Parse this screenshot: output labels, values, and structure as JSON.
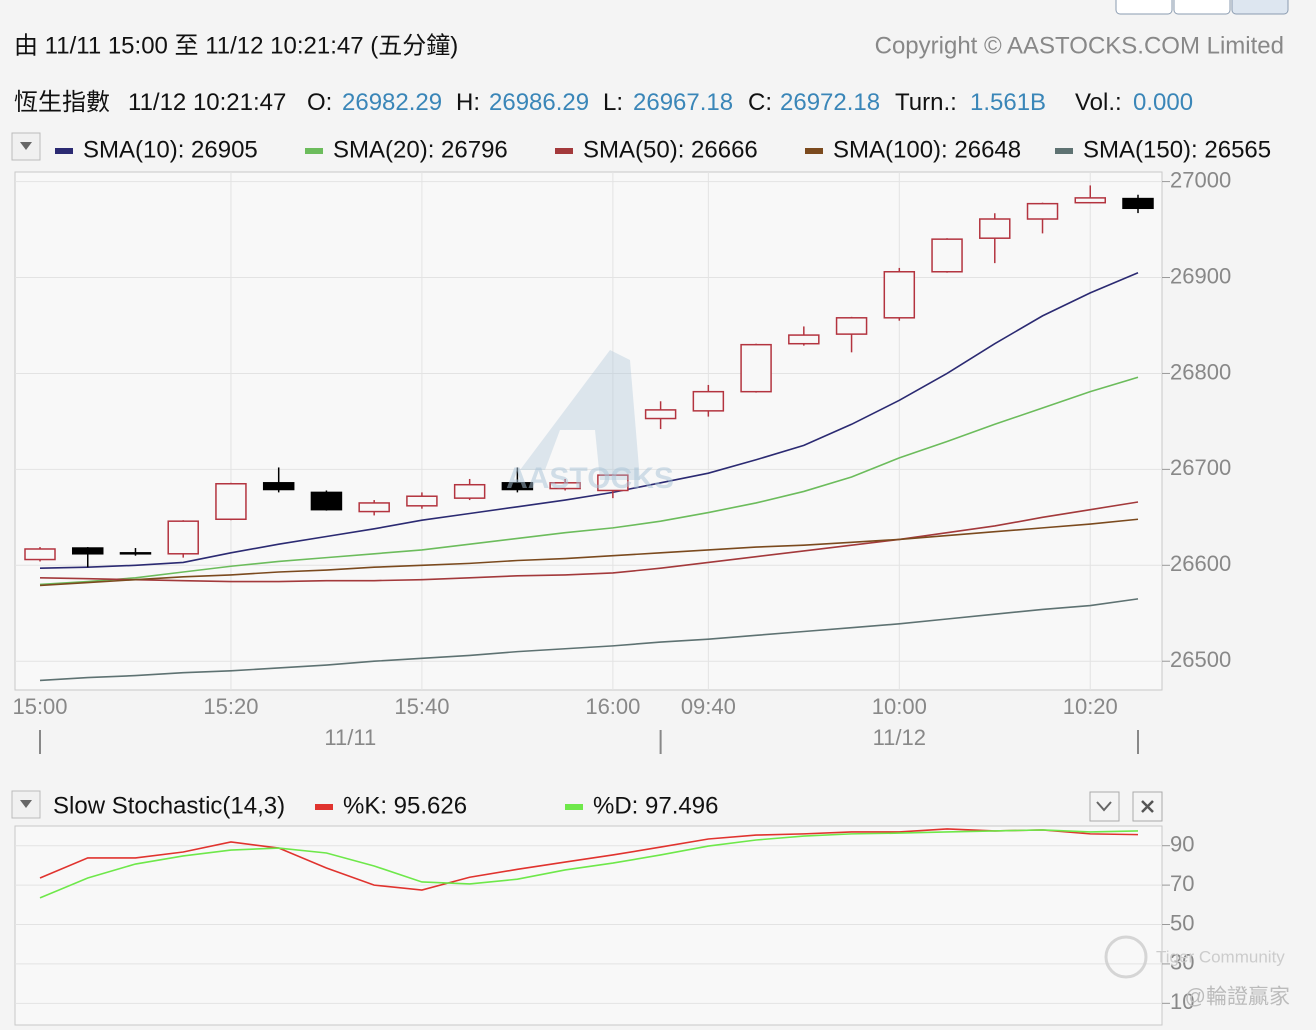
{
  "header": {
    "range": "由  11/11 15:00 至  11/12 10:21:47 (五分鐘)",
    "copyright": "Copyright © AASTOCKS.COM Limited"
  },
  "info": {
    "name": "恆生指數",
    "time": "11/12 10:21:47",
    "o": "O:",
    "h": "H:",
    "l": "L:",
    "c": "C:",
    "turn_label": "Turn.:",
    "turn": "1.561B",
    "vol_label": "Vol.:",
    "vol": "0.000"
  },
  "watermarks": [
    "AASTOCKS",
    "Tiger Community",
    "@輪證贏家"
  ],
  "chart_data": [
    {
      "type": "candlestick",
      "categories": [
        "15:00",
        null,
        null,
        null,
        "15:20",
        null,
        null,
        null,
        "15:40",
        null,
        null,
        null,
        "16:00",
        null,
        "09:40",
        null,
        null,
        null,
        "10:00",
        null,
        null,
        null,
        "10:20",
        null
      ],
      "dates": [
        "11/11",
        "11/12"
      ],
      "open": [
        26606,
        26618,
        26613,
        26612,
        26648,
        26686,
        26676,
        26656,
        26662,
        26670,
        26686,
        26680,
        26678,
        26753,
        26761,
        26781,
        26831,
        26841,
        26858,
        26906,
        26941,
        26961,
        26978,
        26982.29
      ],
      "high": [
        26619,
        26619,
        26618,
        26647,
        26686,
        26702,
        26678,
        26668,
        26676,
        26690,
        26702,
        26690,
        26695,
        26771,
        26788,
        26831,
        26849,
        26859,
        26910,
        26941,
        26967,
        26978,
        26996,
        26986.29
      ],
      "low": [
        26604,
        26598,
        26610,
        26608,
        26647,
        26676,
        26657,
        26652,
        26659,
        26668,
        26676,
        26678,
        26670,
        26742,
        26755,
        26780,
        26829,
        26822,
        26855,
        26905,
        26915,
        26946,
        26978,
        26967.18
      ],
      "close": [
        26617,
        26612,
        26612,
        26646,
        26685,
        26679,
        26658,
        26665,
        26672,
        26684,
        26679,
        26686,
        26694,
        26762,
        26781,
        26830,
        26840,
        26858,
        26906,
        26940,
        26961,
        26977,
        26983,
        26972.18
      ],
      "up_color": "#b3343f",
      "down_color": "#000000",
      "series": [
        {
          "name": "SMA(10): 26905",
          "color": "#2b2a72",
          "values": [
            26597,
            26598,
            26600,
            26603,
            26613,
            26622,
            26630,
            26638,
            26647,
            26654,
            26661,
            26668,
            26676,
            26686,
            26696,
            26710,
            26725,
            26747,
            26772,
            26800,
            26831,
            26860,
            26884,
            26905
          ]
        },
        {
          "name": "SMA(20): 26796",
          "color": "#6cbc5c",
          "values": [
            26580,
            26583,
            26587,
            26593,
            26599,
            26604,
            26608,
            26612,
            26616,
            26622,
            26628,
            26634,
            26639,
            26646,
            26655,
            26665,
            26677,
            26692,
            26712,
            26729,
            26747,
            26764,
            26781,
            26796
          ]
        },
        {
          "name": "SMA(50): 26666",
          "color": "#a3393b",
          "values": [
            26587,
            26586,
            26585,
            26584,
            26583,
            26583,
            26584,
            26584,
            26585,
            26587,
            26589,
            26590,
            26592,
            26597,
            26603,
            26609,
            26615,
            26621,
            26627,
            26634,
            26641,
            26650,
            26658,
            26666
          ]
        },
        {
          "name": "SMA(100): 26648",
          "color": "#7b4a1e",
          "values": [
            26579,
            26582,
            26585,
            26588,
            26590,
            26593,
            26595,
            26598,
            26600,
            26602,
            26605,
            26607,
            26610,
            26613,
            26616,
            26619,
            26621,
            26624,
            26627,
            26631,
            26635,
            26639,
            26643,
            26648
          ]
        },
        {
          "name": "SMA(150): 26565",
          "color": "#5e7272",
          "values": [
            26480,
            26483,
            26485,
            26488,
            26490,
            26493,
            26496,
            26500,
            26503,
            26506,
            26510,
            26513,
            26516,
            26520,
            26523,
            26527,
            26531,
            26535,
            26539,
            26544,
            26549,
            26554,
            26558,
            26565
          ]
        }
      ],
      "ylim": [
        26470,
        27010
      ],
      "yticks": [
        26500,
        26600,
        26700,
        26800,
        26900,
        27000
      ],
      "grid": true
    },
    {
      "type": "line",
      "title": "Slow Stochastic(14,3)",
      "series": [
        {
          "name": "%K: 95.626",
          "color": "#e0332e",
          "values": [
            73.6,
            83.8,
            83.8,
            86.8,
            91.9,
            88.8,
            78.7,
            70,
            67.5,
            74,
            78,
            81.7,
            85.3,
            89.3,
            93.4,
            95.4,
            96,
            97,
            97,
            98.5,
            97.5,
            98,
            96,
            95.626
          ]
        },
        {
          "name": "%D: 97.496",
          "color": "#6ee84a",
          "values": [
            63.5,
            73.6,
            80.7,
            84.8,
            87.8,
            88.8,
            86.3,
            79.7,
            71.6,
            70.6,
            73,
            77.7,
            81.2,
            85.3,
            89.8,
            92.9,
            94.9,
            96,
            96.4,
            97,
            97.5,
            98,
            97,
            97.496
          ]
        }
      ],
      "ylim": [
        -1,
        100
      ],
      "yticks": [
        10,
        30,
        50,
        70,
        90
      ],
      "grid": true
    }
  ]
}
